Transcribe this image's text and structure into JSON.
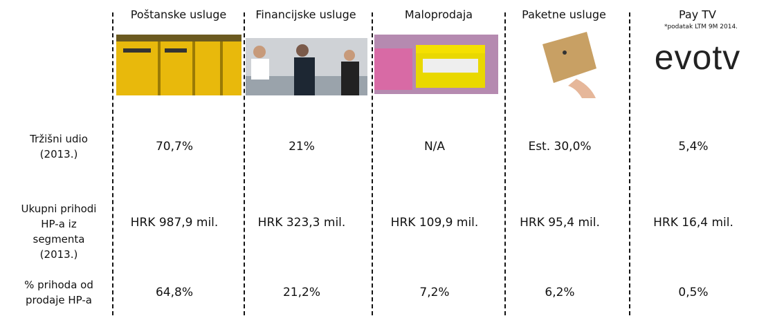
{
  "columns": [
    {
      "title": "Poštanske usluge"
    },
    {
      "title": "Financijske usluge"
    },
    {
      "title": "Maloprodaja"
    },
    {
      "title": "Paketne usluge"
    },
    {
      "title": "Pay TV",
      "note": "*podatak LTM 9M 2014.",
      "logo": "evotv"
    }
  ],
  "rows": [
    {
      "label": "Tržišni udio (2013.)",
      "values": [
        "70,7%",
        "21%",
        "N/A",
        "Est. 30,0%",
        "5,4%"
      ]
    },
    {
      "label": "Ukupni prihodi HP-a iz segmenta (2013.)",
      "values": [
        "HRK 987,9 mil.",
        "HRK 323,3 mil.",
        "HRK 109,9 mil.",
        "HRK 95,4 mil.",
        "HRK 16,4 mil."
      ]
    },
    {
      "label": "% prihoda od prodaje HP-a",
      "values": [
        "64,8%",
        "21,2%",
        "7,2%",
        "6,2%",
        "0,5%"
      ]
    }
  ]
}
